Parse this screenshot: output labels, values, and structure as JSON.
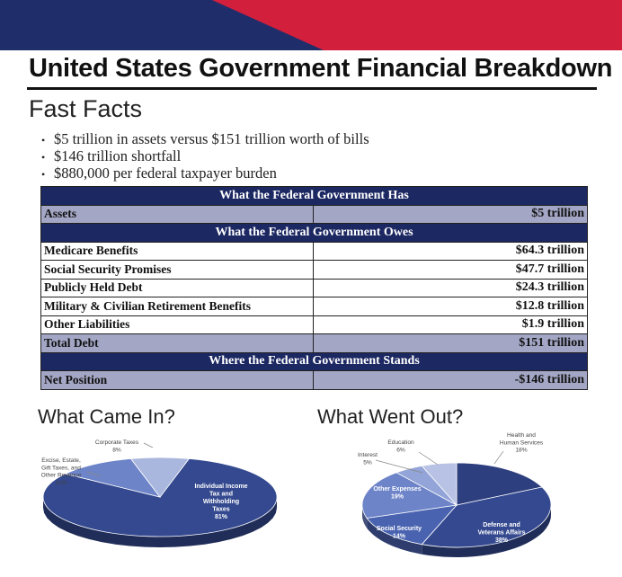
{
  "page_title": "United States Government Financial Breakdown",
  "fast_facts": {
    "heading": "Fast Facts",
    "items": [
      "$5 trillion in assets versus $151 trillion worth of bills",
      "$146 trillion shortfall",
      "$880,000 per federal taxpayer burden"
    ]
  },
  "table": {
    "has_header": "What the Federal Government Has",
    "assets": {
      "label": "Assets",
      "value": "$5 trillion"
    },
    "owes_header": "What the Federal Government Owes",
    "owes_rows": [
      {
        "label": "Medicare Benefits",
        "value": "$64.3 trillion"
      },
      {
        "label": "Social Security Promises",
        "value": "$47.7 trillion"
      },
      {
        "label": "Publicly Held Debt",
        "value": "$24.3 trillion"
      },
      {
        "label": "Military & Civilian Retirement Benefits",
        "value": "$12.8 trillion"
      },
      {
        "label": "Other Liabilities",
        "value": "$1.9 trillion"
      }
    ],
    "total": {
      "label": "Total Debt",
      "value": "$151 trillion"
    },
    "stands_header": "Where the Federal Government Stands",
    "net": {
      "label": "Net Position",
      "value": "-$146 trillion"
    }
  },
  "income_chart": {
    "heading": "What Came In?",
    "slices": [
      {
        "lines": [
          "Individual Income",
          "Tax and",
          "Withholding",
          "Taxes"
        ],
        "pct_label": "81%",
        "value": 81,
        "color": "#34498f"
      },
      {
        "lines": [
          "Excise, Estate,",
          "Gift Taxes, and",
          "Other Revenue"
        ],
        "pct_label": "11%",
        "value": 11,
        "color": "#6e84c8"
      },
      {
        "lines": [
          "Corporate Taxes"
        ],
        "pct_label": "8%",
        "value": 8,
        "color": "#a9b6de"
      }
    ]
  },
  "spending_chart": {
    "heading": "What Went Out?",
    "slices": [
      {
        "lines": [
          "Health and",
          "Human Services"
        ],
        "pct_label": "18%",
        "value": 18,
        "color": "#2d3f7e"
      },
      {
        "lines": [
          "Defense and",
          "Veterans Affairs"
        ],
        "pct_label": "38%",
        "value": 38,
        "color": "#34498f"
      },
      {
        "lines": [
          "Social Security"
        ],
        "pct_label": "14%",
        "value": 14,
        "color": "#4a63b0"
      },
      {
        "lines": [
          "Other Expenses"
        ],
        "pct_label": "19%",
        "value": 19,
        "color": "#6e84c8"
      },
      {
        "lines": [
          "Interest"
        ],
        "pct_label": "5%",
        "value": 5,
        "color": "#93a4d8"
      },
      {
        "lines": [
          "Education"
        ],
        "pct_label": "6%",
        "value": 6,
        "color": "#b8c2e4"
      }
    ]
  },
  "colors": {
    "banner_red": "#d11f3c",
    "banner_navy": "#1f2d6b",
    "table_header": "#1c2862",
    "table_shade": "#a3a6c4"
  }
}
